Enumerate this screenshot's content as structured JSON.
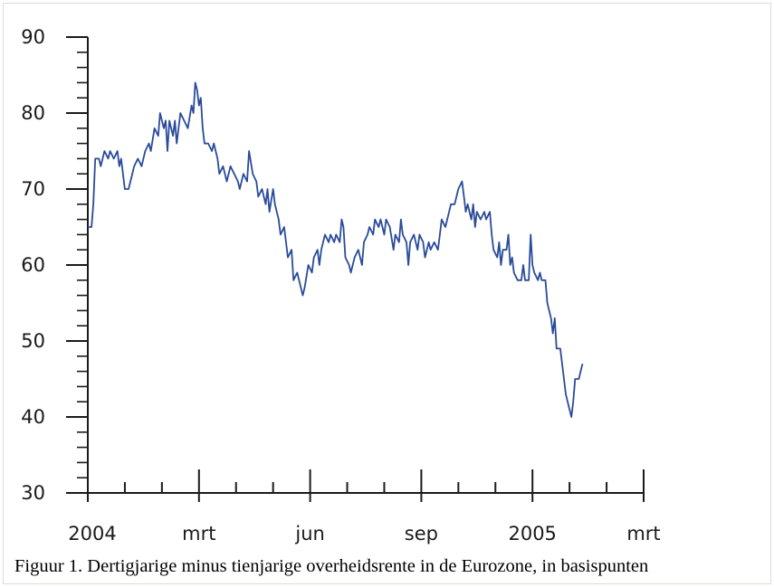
{
  "caption": "Figuur 1. Dertigjarige minus tienjarige overheidsrente in de Eurozone, in basispunten",
  "chart_data": {
    "type": "line",
    "title": "",
    "xlabel": "",
    "ylabel": "",
    "ylim": [
      30,
      90
    ],
    "y_ticks": [
      30,
      40,
      50,
      60,
      70,
      80,
      90
    ],
    "xlim": [
      0,
      15
    ],
    "x_unit": "months since Jan 2004",
    "x_tick_labels": [
      {
        "x": 0,
        "label": "2004"
      },
      {
        "x": 3,
        "label": "mrt"
      },
      {
        "x": 6,
        "label": "jun"
      },
      {
        "x": 9,
        "label": "sep"
      },
      {
        "x": 12,
        "label": "2005"
      },
      {
        "x": 15,
        "label": "mrt"
      }
    ],
    "grid": false,
    "line_color": "#2a4b9a",
    "series": [
      {
        "name": "",
        "points": [
          [
            0.0,
            65
          ],
          [
            0.1,
            65
          ],
          [
            0.15,
            68
          ],
          [
            0.2,
            74
          ],
          [
            0.3,
            74
          ],
          [
            0.35,
            73
          ],
          [
            0.45,
            75
          ],
          [
            0.55,
            74
          ],
          [
            0.6,
            75
          ],
          [
            0.7,
            74
          ],
          [
            0.8,
            75
          ],
          [
            0.85,
            73
          ],
          [
            0.9,
            74
          ],
          [
            1.0,
            70
          ],
          [
            1.1,
            70
          ],
          [
            1.15,
            71
          ],
          [
            1.25,
            73
          ],
          [
            1.35,
            74
          ],
          [
            1.45,
            73
          ],
          [
            1.55,
            75
          ],
          [
            1.65,
            76
          ],
          [
            1.7,
            75
          ],
          [
            1.8,
            78
          ],
          [
            1.9,
            77
          ],
          [
            1.95,
            80
          ],
          [
            2.05,
            78
          ],
          [
            2.1,
            79
          ],
          [
            2.15,
            75
          ],
          [
            2.2,
            79
          ],
          [
            2.3,
            77
          ],
          [
            2.35,
            79
          ],
          [
            2.4,
            76
          ],
          [
            2.5,
            80
          ],
          [
            2.6,
            79
          ],
          [
            2.7,
            78
          ],
          [
            2.8,
            81
          ],
          [
            2.85,
            80
          ],
          [
            2.9,
            84
          ],
          [
            2.95,
            83
          ],
          [
            3.0,
            81
          ],
          [
            3.05,
            82
          ],
          [
            3.1,
            78
          ],
          [
            3.15,
            76
          ],
          [
            3.25,
            76
          ],
          [
            3.35,
            75
          ],
          [
            3.4,
            76
          ],
          [
            3.5,
            74
          ],
          [
            3.55,
            72
          ],
          [
            3.65,
            73
          ],
          [
            3.75,
            71
          ],
          [
            3.85,
            73
          ],
          [
            3.95,
            72
          ],
          [
            4.05,
            71
          ],
          [
            4.1,
            70
          ],
          [
            4.2,
            72
          ],
          [
            4.3,
            71
          ],
          [
            4.35,
            75
          ],
          [
            4.45,
            72
          ],
          [
            4.55,
            71
          ],
          [
            4.6,
            69
          ],
          [
            4.7,
            70
          ],
          [
            4.8,
            68
          ],
          [
            4.85,
            70
          ],
          [
            4.9,
            67
          ],
          [
            5.0,
            70
          ],
          [
            5.05,
            68
          ],
          [
            5.15,
            66
          ],
          [
            5.2,
            64
          ],
          [
            5.3,
            65
          ],
          [
            5.4,
            61
          ],
          [
            5.5,
            62
          ],
          [
            5.55,
            58
          ],
          [
            5.65,
            59
          ],
          [
            5.75,
            57
          ],
          [
            5.8,
            56
          ],
          [
            5.85,
            57
          ],
          [
            5.95,
            60
          ],
          [
            6.05,
            59
          ],
          [
            6.1,
            61
          ],
          [
            6.2,
            62
          ],
          [
            6.25,
            60
          ],
          [
            6.3,
            62
          ],
          [
            6.4,
            64
          ],
          [
            6.5,
            63
          ],
          [
            6.55,
            64
          ],
          [
            6.65,
            63
          ],
          [
            6.7,
            64
          ],
          [
            6.8,
            63
          ],
          [
            6.85,
            66
          ],
          [
            6.9,
            65
          ],
          [
            6.95,
            61
          ],
          [
            7.05,
            60
          ],
          [
            7.1,
            59
          ],
          [
            7.2,
            61
          ],
          [
            7.3,
            62
          ],
          [
            7.4,
            60
          ],
          [
            7.45,
            63
          ],
          [
            7.55,
            64
          ],
          [
            7.6,
            65
          ],
          [
            7.7,
            64
          ],
          [
            7.75,
            66
          ],
          [
            7.85,
            65
          ],
          [
            7.9,
            66
          ],
          [
            8.0,
            64
          ],
          [
            8.05,
            66
          ],
          [
            8.15,
            65
          ],
          [
            8.25,
            62
          ],
          [
            8.3,
            64
          ],
          [
            8.4,
            63
          ],
          [
            8.45,
            66
          ],
          [
            8.5,
            64
          ],
          [
            8.6,
            63
          ],
          [
            8.65,
            60
          ],
          [
            8.7,
            63
          ],
          [
            8.8,
            64
          ],
          [
            8.9,
            62
          ],
          [
            8.95,
            64
          ],
          [
            9.05,
            63
          ],
          [
            9.1,
            61
          ],
          [
            9.2,
            63
          ],
          [
            9.25,
            62
          ],
          [
            9.35,
            63
          ],
          [
            9.45,
            62
          ],
          [
            9.5,
            64
          ],
          [
            9.55,
            66
          ],
          [
            9.65,
            65
          ],
          [
            9.75,
            67
          ],
          [
            9.8,
            68
          ],
          [
            9.9,
            68
          ],
          [
            10.0,
            70
          ],
          [
            10.1,
            71
          ],
          [
            10.15,
            69
          ],
          [
            10.2,
            67
          ],
          [
            10.25,
            68
          ],
          [
            10.35,
            66
          ],
          [
            10.4,
            68
          ],
          [
            10.45,
            65
          ],
          [
            10.5,
            67
          ],
          [
            10.6,
            66
          ],
          [
            10.7,
            67
          ],
          [
            10.75,
            66
          ],
          [
            10.85,
            67
          ],
          [
            10.9,
            64
          ],
          [
            10.95,
            62
          ],
          [
            11.05,
            61
          ],
          [
            11.1,
            63
          ],
          [
            11.15,
            60
          ],
          [
            11.2,
            62
          ],
          [
            11.3,
            62
          ],
          [
            11.35,
            64
          ],
          [
            11.4,
            60
          ],
          [
            11.45,
            61
          ],
          [
            11.5,
            59
          ],
          [
            11.6,
            58
          ],
          [
            11.7,
            58
          ],
          [
            11.75,
            60
          ],
          [
            11.8,
            58
          ],
          [
            11.9,
            58
          ],
          [
            11.95,
            64
          ],
          [
            12.0,
            60
          ],
          [
            12.05,
            59
          ],
          [
            12.15,
            58
          ],
          [
            12.2,
            59
          ],
          [
            12.25,
            58
          ],
          [
            12.35,
            58
          ],
          [
            12.4,
            55
          ],
          [
            12.5,
            53
          ],
          [
            12.55,
            51
          ],
          [
            12.6,
            53
          ],
          [
            12.65,
            49
          ],
          [
            12.75,
            49
          ],
          [
            12.85,
            45
          ],
          [
            12.9,
            43
          ],
          [
            13.0,
            41
          ],
          [
            13.05,
            40
          ],
          [
            13.1,
            42
          ],
          [
            13.15,
            45
          ],
          [
            13.25,
            45
          ],
          [
            13.3,
            46
          ],
          [
            13.35,
            47
          ]
        ]
      }
    ]
  }
}
